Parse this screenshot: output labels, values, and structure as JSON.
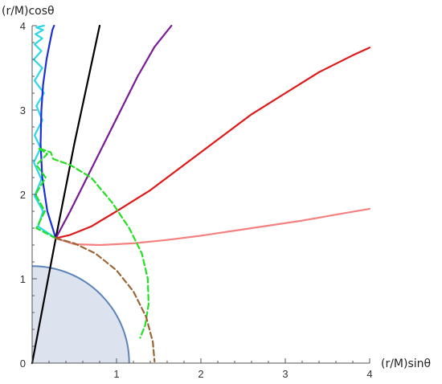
{
  "chart_data": {
    "type": "line",
    "title": "",
    "xlabel": "(r/M)sinθ",
    "ylabel": "(r/M)cosθ",
    "xlim": [
      0,
      4
    ],
    "ylim": [
      0,
      4
    ],
    "xticks": [
      "1",
      "2",
      "3",
      "4"
    ],
    "yticks": [
      "0",
      "1",
      "2",
      "3",
      "4"
    ],
    "grid": false,
    "legend": "none",
    "region": {
      "shape": "quarter-disk",
      "radius": 1.15,
      "fill": "#dde3ee",
      "stroke": "#5b84b8"
    },
    "series": [
      {
        "color": "#2bd6e8",
        "style": "solid",
        "x": [
          0.28,
          0.07,
          0.13,
          0.03,
          0.11,
          0.02,
          0.1,
          0.03,
          0.12,
          0.05,
          0.14,
          0.03,
          0.12,
          0.02,
          0.11,
          0.03,
          0.12,
          0.04,
          0.13,
          0.05,
          0.14
        ],
        "y": [
          1.48,
          1.62,
          1.8,
          1.98,
          2.18,
          2.38,
          2.55,
          2.7,
          2.88,
          3.05,
          3.2,
          3.35,
          3.5,
          3.6,
          3.7,
          3.78,
          3.85,
          3.9,
          3.95,
          3.98,
          4.0
        ]
      },
      {
        "color": "#1a2fd6",
        "style": "solid",
        "x": [
          0.28,
          0.18,
          0.12,
          0.1,
          0.11,
          0.13,
          0.17,
          0.21,
          0.24,
          0.26
        ],
        "y": [
          1.48,
          1.8,
          2.2,
          2.6,
          3.0,
          3.3,
          3.6,
          3.8,
          3.95,
          4.0
        ]
      },
      {
        "color": "#000000",
        "style": "solid",
        "x": [
          0.0,
          0.28,
          0.5,
          0.8
        ],
        "y": [
          0.0,
          1.48,
          2.6,
          4.0
        ]
      },
      {
        "color": "#7a1a96",
        "style": "solid",
        "x": [
          0.28,
          0.45,
          0.65,
          0.85,
          1.05,
          1.25,
          1.45,
          1.65
        ],
        "y": [
          1.48,
          1.8,
          2.2,
          2.6,
          3.0,
          3.4,
          3.75,
          4.0
        ]
      },
      {
        "color": "#e01818",
        "style": "solid",
        "x": [
          0.28,
          0.45,
          0.7,
          1.0,
          1.4,
          1.8,
          2.2,
          2.6,
          3.0,
          3.4,
          3.8,
          4.0
        ],
        "y": [
          1.48,
          1.52,
          1.62,
          1.8,
          2.05,
          2.35,
          2.65,
          2.95,
          3.2,
          3.45,
          3.65,
          3.74
        ]
      },
      {
        "color": "#f58080",
        "style": "solid",
        "x": [
          0.28,
          0.5,
          0.8,
          1.2,
          1.6,
          2.0,
          2.4,
          2.8,
          3.2,
          3.6,
          4.0
        ],
        "y": [
          1.48,
          1.41,
          1.4,
          1.42,
          1.46,
          1.51,
          1.57,
          1.63,
          1.69,
          1.76,
          1.83
        ]
      },
      {
        "color": "#22e022",
        "style": "dashed",
        "x": [
          0.28,
          0.05,
          0.15,
          0.04,
          0.16,
          0.05,
          0.18,
          0.07,
          0.22,
          0.25,
          0.45,
          0.7,
          0.95,
          1.15,
          1.3,
          1.37,
          1.38,
          1.34,
          1.28
        ],
        "y": [
          1.48,
          1.6,
          1.8,
          2.0,
          2.2,
          2.35,
          2.48,
          2.55,
          2.5,
          2.42,
          2.35,
          2.2,
          1.9,
          1.6,
          1.3,
          1.0,
          0.7,
          0.45,
          0.3
        ]
      },
      {
        "color": "#9b6433",
        "style": "dashed",
        "x": [
          0.28,
          0.5,
          0.75,
          1.0,
          1.2,
          1.35,
          1.43,
          1.45
        ],
        "y": [
          1.48,
          1.42,
          1.3,
          1.1,
          0.85,
          0.55,
          0.25,
          0.02
        ]
      }
    ]
  }
}
